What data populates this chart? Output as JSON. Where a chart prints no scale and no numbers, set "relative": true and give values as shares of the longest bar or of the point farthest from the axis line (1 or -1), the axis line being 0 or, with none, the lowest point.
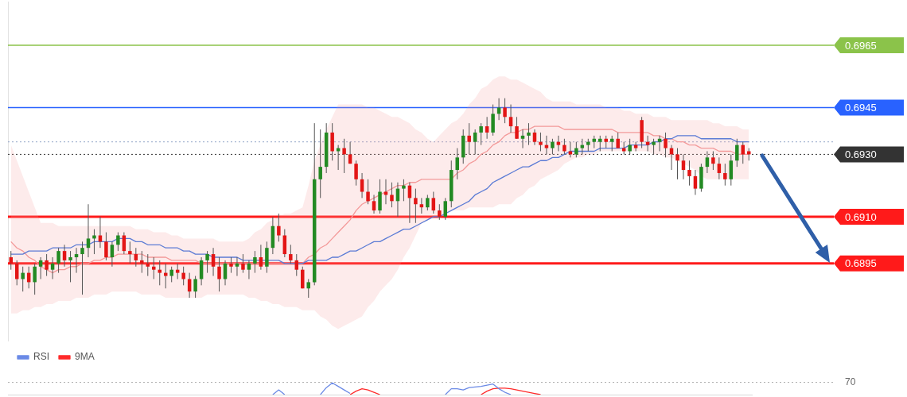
{
  "chart_data": [
    {
      "type": "candlestick",
      "categories": [
        null,
        null,
        null,
        null,
        null,
        null,
        null,
        null,
        null,
        null,
        null,
        null,
        null,
        null,
        null,
        null,
        null,
        null,
        null,
        null,
        null,
        null,
        null,
        null,
        null,
        null,
        null,
        null,
        null,
        null,
        null,
        null,
        null,
        null,
        null,
        null,
        null,
        null,
        null,
        null,
        null,
        null,
        null,
        null,
        null,
        null,
        null,
        null,
        null,
        null,
        null,
        null,
        null,
        null,
        null,
        null,
        null,
        null,
        null,
        null,
        null,
        null,
        null,
        null,
        null,
        null,
        null,
        null,
        null,
        null,
        null,
        null,
        null,
        null,
        null,
        null,
        null,
        null,
        null,
        null,
        null,
        null,
        null,
        null,
        null,
        null,
        null,
        null,
        null,
        null,
        null,
        null,
        null,
        null,
        null,
        null,
        null,
        null,
        null,
        null,
        null,
        null,
        null,
        null,
        null,
        null,
        null,
        null,
        null,
        null,
        null,
        null,
        null,
        null,
        null,
        null,
        null,
        null,
        null,
        null,
        null,
        null,
        null,
        null,
        null
      ],
      "ohlc": [
        [
          0.6897,
          0.6899,
          0.6893,
          0.6895
        ],
        [
          0.6895,
          0.6896,
          0.6888,
          0.689
        ],
        [
          0.689,
          0.6894,
          0.6886,
          0.6892
        ],
        [
          0.6892,
          0.6894,
          0.6887,
          0.6889
        ],
        [
          0.6889,
          0.6895,
          0.6885,
          0.6894
        ],
        [
          0.6894,
          0.6897,
          0.689,
          0.6896
        ],
        [
          0.6896,
          0.6898,
          0.6891,
          0.6893
        ],
        [
          0.6893,
          0.6897,
          0.689,
          0.6895
        ],
        [
          0.6895,
          0.69,
          0.6892,
          0.6899
        ],
        [
          0.6899,
          0.6901,
          0.6894,
          0.6896
        ],
        [
          0.6896,
          0.6899,
          0.6889,
          0.6897
        ],
        [
          0.6897,
          0.69,
          0.6892,
          0.6898
        ],
        [
          0.6898,
          0.6902,
          0.6885,
          0.69
        ],
        [
          0.69,
          0.6914,
          0.6897,
          0.6903
        ],
        [
          0.6903,
          0.6906,
          0.6898,
          0.6904
        ],
        [
          0.6904,
          0.691,
          0.69,
          0.6902
        ],
        [
          0.6902,
          0.6905,
          0.6896,
          0.6897
        ],
        [
          0.6897,
          0.6902,
          0.6894,
          0.6901
        ],
        [
          0.6901,
          0.6905,
          0.6899,
          0.6904
        ],
        [
          0.6904,
          0.6905,
          0.6898,
          0.6899
        ],
        [
          0.6899,
          0.6902,
          0.6895,
          0.6898
        ],
        [
          0.6898,
          0.69,
          0.6894,
          0.6896
        ],
        [
          0.6896,
          0.6899,
          0.6892,
          0.6895
        ],
        [
          0.6895,
          0.6898,
          0.6891,
          0.6894
        ],
        [
          0.6894,
          0.6897,
          0.689,
          0.6893
        ],
        [
          0.6893,
          0.6896,
          0.6888,
          0.6892
        ],
        [
          0.6892,
          0.6895,
          0.6887,
          0.6891
        ],
        [
          0.6891,
          0.6894,
          0.6889,
          0.6893
        ],
        [
          0.6893,
          0.6895,
          0.689,
          0.6892
        ],
        [
          0.6892,
          0.6894,
          0.6888,
          0.689
        ],
        [
          0.689,
          0.6892,
          0.6884,
          0.6886
        ],
        [
          0.6886,
          0.6891,
          0.6884,
          0.689
        ],
        [
          0.689,
          0.6897,
          0.6888,
          0.6896
        ],
        [
          0.6896,
          0.6899,
          0.6892,
          0.6898
        ],
        [
          0.6898,
          0.69,
          0.6891,
          0.6894
        ],
        [
          0.6894,
          0.6897,
          0.6886,
          0.689
        ],
        [
          0.689,
          0.6896,
          0.6888,
          0.6895
        ],
        [
          0.6895,
          0.6897,
          0.6892,
          0.6894
        ],
        [
          0.6894,
          0.6897,
          0.6891,
          0.6895
        ],
        [
          0.6895,
          0.6898,
          0.6892,
          0.6893
        ],
        [
          0.6893,
          0.6896,
          0.689,
          0.6895
        ],
        [
          0.6895,
          0.6899,
          0.6892,
          0.6897
        ],
        [
          0.6897,
          0.6901,
          0.6893,
          0.6894
        ],
        [
          0.6894,
          0.6902,
          0.6892,
          0.69
        ],
        [
          0.69,
          0.691,
          0.6898,
          0.6907
        ],
        [
          0.6907,
          0.6911,
          0.6902,
          0.6904
        ],
        [
          0.6904,
          0.6906,
          0.6897,
          0.6898
        ],
        [
          0.6898,
          0.6901,
          0.6895,
          0.6896
        ],
        [
          0.6896,
          0.6898,
          0.6891,
          0.6893
        ],
        [
          0.6893,
          0.6894,
          0.6887,
          0.6887
        ],
        [
          0.6887,
          0.689,
          0.6884,
          0.6889
        ],
        [
          0.6889,
          0.694,
          0.6888,
          0.6922
        ],
        [
          0.6922,
          0.6938,
          0.6916,
          0.6926
        ],
        [
          0.6926,
          0.694,
          0.6924,
          0.6937
        ],
        [
          0.6937,
          0.694,
          0.6928,
          0.6931
        ],
        [
          0.6931,
          0.6933,
          0.6925,
          0.6932
        ],
        [
          0.6932,
          0.6935,
          0.6924,
          0.693
        ],
        [
          0.693,
          0.6934,
          0.6927,
          0.6927
        ],
        [
          0.6927,
          0.6928,
          0.692,
          0.6922
        ],
        [
          0.6922,
          0.6924,
          0.6916,
          0.6918
        ],
        [
          0.6918,
          0.6922,
          0.6914,
          0.6915
        ],
        [
          0.6915,
          0.6917,
          0.6911,
          0.6912
        ],
        [
          0.6912,
          0.6922,
          0.6911,
          0.6918
        ],
        [
          0.6918,
          0.6922,
          0.6914,
          0.6917
        ],
        [
          0.6917,
          0.6921,
          0.6913,
          0.6915
        ],
        [
          0.6915,
          0.6921,
          0.691,
          0.6919
        ],
        [
          0.6919,
          0.6922,
          0.6915,
          0.692
        ],
        [
          0.692,
          0.6921,
          0.6908,
          0.6916
        ],
        [
          0.6916,
          0.6919,
          0.6908,
          0.6914
        ],
        [
          0.6914,
          0.6916,
          0.6911,
          0.6913
        ],
        [
          0.6913,
          0.6917,
          0.6912,
          0.6916
        ],
        [
          0.6916,
          0.6918,
          0.6911,
          0.6912
        ],
        [
          0.6912,
          0.6914,
          0.6909,
          0.691
        ],
        [
          0.691,
          0.6916,
          0.6909,
          0.6915
        ],
        [
          0.6915,
          0.6928,
          0.6913,
          0.6925
        ],
        [
          0.6925,
          0.6932,
          0.6922,
          0.6929
        ],
        [
          0.6929,
          0.6938,
          0.6927,
          0.6936
        ],
        [
          0.6936,
          0.694,
          0.693,
          0.6934
        ],
        [
          0.6934,
          0.6938,
          0.693,
          0.6937
        ],
        [
          0.6937,
          0.694,
          0.6933,
          0.6939
        ],
        [
          0.6939,
          0.6942,
          0.6935,
          0.6937
        ],
        [
          0.6937,
          0.6946,
          0.6936,
          0.6943
        ],
        [
          0.6943,
          0.6948,
          0.6941,
          0.6945
        ],
        [
          0.6945,
          0.6948,
          0.694,
          0.6942
        ],
        [
          0.6942,
          0.6946,
          0.6937,
          0.6939
        ],
        [
          0.6939,
          0.6942,
          0.6935,
          0.6935
        ],
        [
          0.6935,
          0.6938,
          0.6932,
          0.6936
        ],
        [
          0.6936,
          0.694,
          0.6933,
          0.6937
        ],
        [
          0.6937,
          0.6938,
          0.6933,
          0.6934
        ],
        [
          0.6934,
          0.6937,
          0.6931,
          0.6933
        ],
        [
          0.6933,
          0.6936,
          0.693,
          0.6932
        ],
        [
          0.6932,
          0.6935,
          0.693,
          0.6934
        ],
        [
          0.6934,
          0.6936,
          0.6931,
          0.6933
        ],
        [
          0.6933,
          0.6935,
          0.693,
          0.6931
        ],
        [
          0.6931,
          0.6934,
          0.6929,
          0.693
        ],
        [
          0.693,
          0.6934,
          0.6929,
          0.6932
        ],
        [
          0.6932,
          0.6935,
          0.693,
          0.6933
        ],
        [
          0.6933,
          0.6935,
          0.6931,
          0.6934
        ],
        [
          0.6934,
          0.6936,
          0.6932,
          0.6935
        ],
        [
          0.6934,
          0.6936,
          0.6931,
          0.6935
        ],
        [
          0.6935,
          0.6936,
          0.6932,
          0.6934
        ],
        [
          0.6934,
          0.6936,
          0.6931,
          0.6935
        ],
        [
          0.6935,
          0.6937,
          0.6932,
          0.6932
        ],
        [
          0.6932,
          0.6934,
          0.693,
          0.6931
        ],
        [
          0.6931,
          0.6935,
          0.693,
          0.6933
        ],
        [
          0.6933,
          0.6934,
          0.6931,
          0.6932
        ],
        [
          0.6941,
          0.6942,
          0.6932,
          0.6934
        ],
        [
          0.6934,
          0.6936,
          0.6931,
          0.6933
        ],
        [
          0.6933,
          0.6935,
          0.693,
          0.6934
        ],
        [
          0.6934,
          0.6936,
          0.6931,
          0.6935
        ],
        [
          0.6935,
          0.6937,
          0.6929,
          0.6932
        ],
        [
          0.6932,
          0.6933,
          0.6925,
          0.693
        ],
        [
          0.693,
          0.6932,
          0.6922,
          0.6928
        ],
        [
          0.6928,
          0.693,
          0.6922,
          0.6925
        ],
        [
          0.6925,
          0.6928,
          0.692,
          0.6923
        ],
        [
          0.6923,
          0.6925,
          0.6917,
          0.6919
        ],
        [
          0.6919,
          0.6927,
          0.6918,
          0.6926
        ],
        [
          0.6926,
          0.6931,
          0.6924,
          0.6929
        ],
        [
          0.6929,
          0.6931,
          0.6925,
          0.6927
        ],
        [
          0.6927,
          0.6929,
          0.6922,
          0.6924
        ],
        [
          0.6924,
          0.6927,
          0.692,
          0.6922
        ],
        [
          0.6922,
          0.693,
          0.692,
          0.6928
        ],
        [
          0.6928,
          0.6935,
          0.6926,
          0.6933
        ],
        [
          0.6933,
          0.6934,
          0.6927,
          0.693
        ],
        [
          0.6931,
          0.6932,
          0.6928,
          0.693
        ]
      ],
      "series": [
        {
          "type": "line",
          "color": "#5b7bd5",
          "values": [
            0.6898,
            0.6898,
            0.6898,
            0.6899,
            0.6899,
            0.6899,
            0.6899,
            0.69,
            0.69,
            0.69,
            0.69,
            0.6901,
            0.6901,
            0.6901,
            0.6902,
            0.6902,
            0.6902,
            0.6902,
            0.6903,
            0.6903,
            0.6903,
            0.6902,
            0.6902,
            0.6901,
            0.6901,
            0.6901,
            0.69,
            0.69,
            0.69,
            0.6899,
            0.6899,
            0.6898,
            0.6898,
            0.6898,
            0.6897,
            0.6897,
            0.6897,
            0.6897,
            0.6897,
            0.6896,
            0.6896,
            0.6896,
            0.6896,
            0.6896,
            0.6896,
            0.6896,
            0.6895,
            0.6895,
            0.6895,
            0.6895,
            0.6896,
            0.6896,
            0.6896,
            0.6896,
            0.6897,
            0.6897,
            0.6898,
            0.6899,
            0.6899,
            0.69,
            0.6901,
            0.6902,
            0.6902,
            0.6903,
            0.6904,
            0.6905,
            0.6906,
            0.6906,
            0.6907,
            0.6908,
            0.6909,
            0.691,
            0.691,
            0.6911,
            0.6912,
            0.6913,
            0.6914,
            0.6915,
            0.6917,
            0.6918,
            0.6919,
            0.6921,
            0.6922,
            0.6923,
            0.6924,
            0.6925,
            0.6926,
            0.6926,
            0.6927,
            0.6928,
            0.6928,
            0.6929,
            0.6929,
            0.693,
            0.6931,
            0.6931,
            0.6931,
            0.6931,
            0.6931,
            0.6932,
            0.6932,
            0.6932,
            0.6932,
            0.6932,
            0.6933,
            0.6933,
            0.6933,
            0.6933,
            0.6934,
            0.6934,
            0.6935,
            0.6935,
            0.6936,
            0.6936,
            0.6936,
            0.6936,
            0.6935,
            0.6935,
            0.6935,
            0.6935,
            0.6935,
            0.6935,
            0.6934,
            0.6934,
            0.6934
          ]
        },
        {
          "type": "line",
          "color": "#f49a9a",
          "values": [
            0.6902,
            0.69,
            0.6899,
            0.6897,
            0.6896,
            0.6894,
            0.6893,
            0.6892,
            0.6893,
            0.6893,
            0.6894,
            0.6894,
            0.6895,
            0.6895,
            0.6896,
            0.6896,
            0.6897,
            0.6897,
            0.6898,
            0.6898,
            0.6898,
            0.6898,
            0.6898,
            0.6897,
            0.6897,
            0.6897,
            0.6897,
            0.6896,
            0.6896,
            0.6896,
            0.6896,
            0.6896,
            0.6895,
            0.6895,
            0.6895,
            0.6895,
            0.6895,
            0.6895,
            0.6895,
            0.6895,
            0.6895,
            0.6895,
            0.6895,
            0.6895,
            0.6895,
            0.6895,
            0.6895,
            0.6895,
            0.6895,
            0.6895,
            0.6897,
            0.6898,
            0.69,
            0.6901,
            0.6903,
            0.6905,
            0.6907,
            0.6909,
            0.6912,
            0.6914,
            0.6915,
            0.6916,
            0.6917,
            0.6918,
            0.6919,
            0.692,
            0.692,
            0.6921,
            0.6921,
            0.6922,
            0.6922,
            0.6922,
            0.6922,
            0.6922,
            0.6922,
            0.6924,
            0.6925,
            0.6927,
            0.6928,
            0.693,
            0.6931,
            0.6933,
            0.6934,
            0.6936,
            0.6937,
            0.6937,
            0.6938,
            0.6938,
            0.6939,
            0.6939,
            0.6939,
            0.6939,
            0.6939,
            0.6938,
            0.6938,
            0.6938,
            0.6938,
            0.6938,
            0.6938,
            0.6938,
            0.6938,
            0.6938,
            0.6937,
            0.6937,
            0.6937,
            0.6937,
            0.6937,
            0.6937,
            0.6936,
            0.6936,
            0.6935,
            0.6935,
            0.6934,
            0.6934,
            0.6933,
            0.6933,
            0.6932,
            0.6932,
            0.6932,
            0.6931,
            0.6931,
            0.6931,
            0.693,
            0.693,
            0.693
          ],
          "upper": [
            0.6933,
            0.6928,
            0.6923,
            0.6918,
            0.6913,
            0.6908,
            0.6908,
            0.6908,
            0.6907,
            0.6907,
            0.6907,
            0.6907,
            0.6907,
            0.6907,
            0.6907,
            0.6907,
            0.6907,
            0.6907,
            0.6907,
            0.6907,
            0.6907,
            0.6906,
            0.6906,
            0.6906,
            0.6905,
            0.6905,
            0.6905,
            0.6904,
            0.6904,
            0.6903,
            0.6903,
            0.6903,
            0.6903,
            0.6903,
            0.6903,
            0.6902,
            0.6902,
            0.6902,
            0.6902,
            0.6902,
            0.6903,
            0.6905,
            0.6906,
            0.6908,
            0.6909,
            0.691,
            0.6911,
            0.6911,
            0.6912,
            0.6913,
            0.692,
            0.6928,
            0.6933,
            0.6938,
            0.6942,
            0.6946,
            0.6946,
            0.6946,
            0.6946,
            0.6946,
            0.6945,
            0.6945,
            0.6944,
            0.6943,
            0.6942,
            0.6942,
            0.6941,
            0.694,
            0.6938,
            0.6937,
            0.6935,
            0.6934,
            0.6936,
            0.6938,
            0.694,
            0.6941,
            0.6943,
            0.6946,
            0.6948,
            0.6951,
            0.6952,
            0.6954,
            0.6955,
            0.6955,
            0.6954,
            0.6954,
            0.6953,
            0.6952,
            0.6951,
            0.695,
            0.6948,
            0.6947,
            0.6947,
            0.6947,
            0.6947,
            0.6946,
            0.6946,
            0.6946,
            0.6946,
            0.6946,
            0.6945,
            0.6945,
            0.6945,
            0.6944,
            0.6944,
            0.6943,
            0.6943,
            0.6943,
            0.6942,
            0.6942,
            0.6942,
            0.6941,
            0.6941,
            0.6941,
            0.6941,
            0.6941,
            0.6941,
            0.6941,
            0.694,
            0.694,
            0.6939,
            0.6939,
            0.6939,
            0.6938,
            0.6938
          ],
          "lower": [
            0.6879,
            0.6879,
            0.688,
            0.688,
            0.6881,
            0.6881,
            0.6882,
            0.6882,
            0.6883,
            0.6883,
            0.6883,
            0.6884,
            0.6884,
            0.6884,
            0.6885,
            0.6885,
            0.6885,
            0.6886,
            0.6886,
            0.6886,
            0.6886,
            0.6886,
            0.6885,
            0.6885,
            0.6885,
            0.6885,
            0.6884,
            0.6884,
            0.6884,
            0.6884,
            0.6884,
            0.6884,
            0.6884,
            0.6885,
            0.6885,
            0.6885,
            0.6885,
            0.6885,
            0.6885,
            0.6885,
            0.6884,
            0.6884,
            0.6883,
            0.6883,
            0.6882,
            0.6882,
            0.6881,
            0.6881,
            0.6881,
            0.688,
            0.688,
            0.688,
            0.6878,
            0.6877,
            0.6875,
            0.6874,
            0.6875,
            0.6876,
            0.6877,
            0.6878,
            0.6881,
            0.6883,
            0.6886,
            0.6888,
            0.689,
            0.6893,
            0.6897,
            0.69,
            0.6904,
            0.6908,
            0.6909,
            0.691,
            0.691,
            0.6911,
            0.6912,
            0.6912,
            0.6912,
            0.6913,
            0.6913,
            0.6913,
            0.6913,
            0.6913,
            0.6914,
            0.6914,
            0.6914,
            0.6916,
            0.6917,
            0.6919,
            0.692,
            0.6922,
            0.6923,
            0.6924,
            0.6925,
            0.6927,
            0.6928,
            0.6929,
            0.6929,
            0.693,
            0.693,
            0.6931,
            0.6931,
            0.6931,
            0.6931,
            0.6931,
            0.6931,
            0.6931,
            0.6931,
            0.6931,
            0.693,
            0.693,
            0.6929,
            0.6929,
            0.6928,
            0.6927,
            0.6926,
            0.6925,
            0.6923,
            0.6922,
            0.6922,
            0.6922,
            0.6922,
            0.6922,
            0.6922,
            0.6922,
            0.6922
          ]
        }
      ],
      "ylim": [
        0.687,
        0.6979
      ],
      "ref_lines": [
        {
          "axis": "y",
          "value": 0.6965,
          "color": "#8bc34a"
        },
        {
          "axis": "y",
          "value": 0.6945,
          "color": "#2962ff"
        },
        {
          "axis": "y",
          "value": 0.6934,
          "color": "#90a4c8",
          "line_style": "dotted"
        },
        {
          "axis": "y",
          "value": 0.693,
          "color": "#333333",
          "line_style": "dotted"
        },
        {
          "axis": "y",
          "value": 0.691,
          "color": "#ff1a1a"
        },
        {
          "axis": "y",
          "value": 0.6895,
          "color": "#ff1a1a"
        }
      ],
      "yticks": [
        0.6965,
        0.6945,
        {
          "value": 0.693,
          "label": "0.6930"
        },
        {
          "value": 0.691,
          "label": "0.6910"
        },
        0.6895
      ],
      "grid": false,
      "tick_labels": "y",
      "marker": "none"
    },
    {
      "type": "line",
      "categories": [
        null,
        null,
        null,
        null,
        null,
        null,
        null,
        null,
        null,
        null,
        null,
        null,
        null,
        null,
        null,
        null,
        null,
        null,
        null,
        null,
        null,
        null,
        null,
        null,
        null,
        null,
        null,
        null,
        null,
        null,
        null,
        null,
        null,
        null,
        null,
        null,
        null,
        null,
        null,
        null,
        null,
        null,
        null,
        null,
        null,
        null,
        null,
        null,
        null,
        null,
        null,
        null,
        null,
        null,
        null,
        null,
        null,
        null,
        null,
        null,
        null,
        null,
        null,
        null,
        null,
        null,
        null,
        null,
        null,
        null,
        null,
        null,
        null,
        null,
        null,
        null,
        null,
        null,
        null,
        null,
        null,
        null,
        null,
        null,
        null,
        null,
        null,
        null,
        null,
        null,
        null,
        null,
        null,
        null,
        null,
        null,
        null,
        null,
        null,
        null,
        null,
        null,
        null,
        null,
        null,
        null,
        null,
        null,
        null,
        null,
        null,
        null,
        null,
        null,
        null,
        null,
        null,
        null,
        null,
        null,
        null,
        null,
        null,
        null,
        null
      ],
      "series": [
        {
          "name": "RSI",
          "color": "#6b8ae6",
          "values": [
            null,
            null,
            null,
            null,
            null,
            null,
            null,
            null,
            null,
            null,
            null,
            null,
            null,
            null,
            null,
            null,
            null,
            null,
            null,
            null,
            null,
            null,
            null,
            null,
            null,
            null,
            null,
            null,
            null,
            null,
            null,
            null,
            null,
            null,
            null,
            null,
            null,
            null,
            null,
            null,
            null,
            null,
            null,
            null,
            0,
            0.4,
            0,
            null,
            null,
            null,
            null,
            null,
            0,
            0.6,
            1,
            0.7,
            0.4,
            0.1,
            null,
            null,
            null,
            null,
            null,
            null,
            null,
            null,
            null,
            null,
            null,
            null,
            null,
            null,
            null,
            0,
            0.5,
            0.5,
            0.4,
            0.6,
            0.65,
            0.7,
            0.8,
            0.9,
            0.5,
            0.2,
            0,
            null,
            null,
            null,
            null,
            null,
            null,
            null,
            null,
            null,
            null,
            null,
            null,
            null,
            null,
            null,
            null,
            null,
            null,
            null,
            null,
            null,
            null,
            null,
            null,
            null,
            null,
            null,
            null,
            null,
            null,
            null,
            null,
            null,
            null,
            null,
            null,
            null,
            null,
            null,
            null
          ]
        },
        {
          "name": "9MA",
          "color": "#ff2a2a",
          "values": [
            null,
            null,
            null,
            null,
            null,
            null,
            null,
            null,
            null,
            null,
            null,
            null,
            null,
            null,
            null,
            null,
            null,
            null,
            null,
            null,
            null,
            null,
            null,
            null,
            null,
            null,
            null,
            null,
            null,
            null,
            null,
            null,
            null,
            null,
            null,
            null,
            null,
            null,
            null,
            null,
            null,
            null,
            null,
            null,
            null,
            null,
            null,
            null,
            null,
            null,
            null,
            null,
            null,
            null,
            null,
            null,
            null,
            0,
            0.3,
            0.5,
            0.4,
            0.2,
            0,
            null,
            null,
            null,
            null,
            null,
            null,
            null,
            null,
            null,
            null,
            null,
            null,
            null,
            null,
            null,
            null,
            0,
            0.3,
            0.5,
            0.55,
            0.55,
            0.5,
            0.4,
            0.3,
            0.2,
            0.1,
            0,
            null,
            null,
            null,
            null,
            null,
            null,
            null,
            null,
            null,
            null,
            null,
            null,
            null,
            null,
            null,
            null,
            null,
            null,
            null,
            null,
            null,
            null,
            null,
            null,
            null,
            null,
            null,
            null,
            null,
            null,
            null,
            null,
            null,
            null,
            null
          ]
        }
      ],
      "relative": true,
      "ref_lines": [
        {
          "axis": "y",
          "value": 1.05,
          "color": "#b0b0b0",
          "line_style": "dotted"
        }
      ],
      "annotations": [
        "70"
      ],
      "tick_labels": false,
      "legend": "top left",
      "marker": "none"
    }
  ]
}
